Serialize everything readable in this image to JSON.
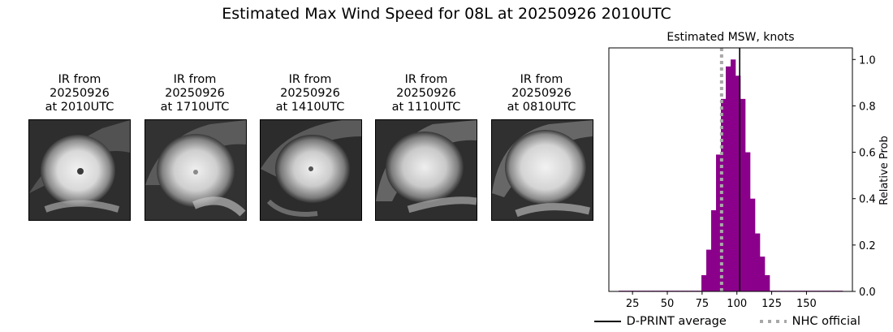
{
  "title": "Estimated Max Wind Speed for 08L at 20250926 2010UTC",
  "panels": [
    {
      "line1": "IR from",
      "line2": "20250926",
      "line3": "at 2010UTC",
      "icon": "satellite-ir-image"
    },
    {
      "line1": "IR from",
      "line2": "20250926",
      "line3": "at 1710UTC",
      "icon": "satellite-ir-image"
    },
    {
      "line1": "IR from",
      "line2": "20250926",
      "line3": "at 1410UTC",
      "icon": "satellite-ir-image"
    },
    {
      "line1": "IR from",
      "line2": "20250926",
      "line3": "at 1110UTC",
      "icon": "satellite-ir-image"
    },
    {
      "line1": "IR from",
      "line2": "20250926",
      "line3": "at 0810UTC",
      "icon": "satellite-ir-image"
    }
  ],
  "chart_data": {
    "type": "bar",
    "title": "Estimated MSW, knots",
    "xlabel": "",
    "ylabel": "Relative Prob",
    "xlim": [
      8,
      183
    ],
    "ylim": [
      0,
      1.05
    ],
    "xticks": [
      25,
      50,
      75,
      100,
      125,
      150
    ],
    "yticks": [
      0.0,
      0.2,
      0.4,
      0.6,
      0.8,
      1.0
    ],
    "ytick_labels": [
      "0.0",
      "0.2",
      "0.4",
      "0.6",
      "0.8",
      "1.0"
    ],
    "bin_width": 3.5,
    "bins": [
      {
        "x": 15,
        "y": 0.003
      },
      {
        "x": 18.5,
        "y": 0.003
      },
      {
        "x": 22,
        "y": 0.003
      },
      {
        "x": 25.5,
        "y": 0.003
      },
      {
        "x": 29,
        "y": 0.003
      },
      {
        "x": 32.5,
        "y": 0.003
      },
      {
        "x": 36,
        "y": 0.003
      },
      {
        "x": 39.5,
        "y": 0.003
      },
      {
        "x": 43,
        "y": 0.003
      },
      {
        "x": 46.5,
        "y": 0.003
      },
      {
        "x": 50,
        "y": 0.003
      },
      {
        "x": 53.5,
        "y": 0.003
      },
      {
        "x": 57,
        "y": 0.003
      },
      {
        "x": 60.5,
        "y": 0.003
      },
      {
        "x": 64,
        "y": 0.003
      },
      {
        "x": 67.5,
        "y": 0.003
      },
      {
        "x": 71,
        "y": 0.003
      },
      {
        "x": 74.5,
        "y": 0.07
      },
      {
        "x": 78,
        "y": 0.18
      },
      {
        "x": 81.5,
        "y": 0.35
      },
      {
        "x": 85,
        "y": 0.59
      },
      {
        "x": 88.5,
        "y": 0.83
      },
      {
        "x": 92,
        "y": 0.97
      },
      {
        "x": 95.5,
        "y": 1.0
      },
      {
        "x": 99,
        "y": 0.93
      },
      {
        "x": 102.5,
        "y": 0.83
      },
      {
        "x": 106,
        "y": 0.6
      },
      {
        "x": 109.5,
        "y": 0.4
      },
      {
        "x": 113,
        "y": 0.25
      },
      {
        "x": 116.5,
        "y": 0.15
      },
      {
        "x": 120,
        "y": 0.07
      },
      {
        "x": 123.5,
        "y": 0.003
      },
      {
        "x": 127,
        "y": 0.003
      },
      {
        "x": 130.5,
        "y": 0.003
      },
      {
        "x": 134,
        "y": 0.003
      },
      {
        "x": 137.5,
        "y": 0.003
      },
      {
        "x": 141,
        "y": 0.003
      },
      {
        "x": 144.5,
        "y": 0.003
      },
      {
        "x": 148,
        "y": 0.003
      },
      {
        "x": 151.5,
        "y": 0.003
      },
      {
        "x": 155,
        "y": 0.003
      },
      {
        "x": 158.5,
        "y": 0.003
      },
      {
        "x": 162,
        "y": 0.003
      },
      {
        "x": 165.5,
        "y": 0.003
      },
      {
        "x": 169,
        "y": 0.003
      },
      {
        "x": 172.5,
        "y": 0.003
      }
    ],
    "bar_color": "#8b008b",
    "dprint_average": 102,
    "nhc_official": 89,
    "dprint_color": "#000000",
    "nhc_color": "#a8a8a8",
    "legend": {
      "dprint_label": "D-PRINT average",
      "nhc_label": "NHC official",
      "placement": "bottom"
    }
  }
}
